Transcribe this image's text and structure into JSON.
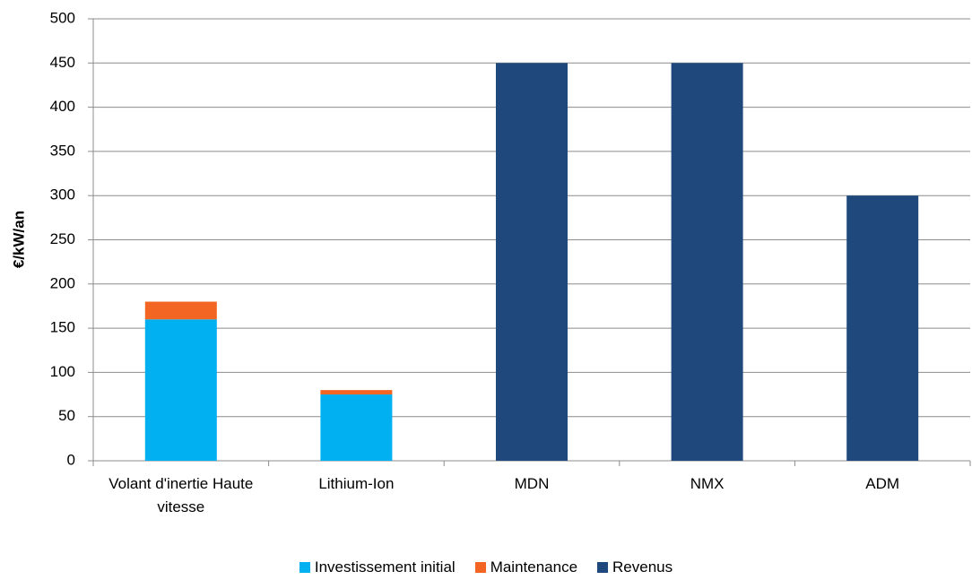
{
  "chart_data": {
    "type": "bar",
    "stacked": true,
    "ylabel": "€/kW/an",
    "categories": [
      "Volant d'inertie Haute vitesse",
      "Lithium-Ion",
      "MDN",
      "NMX",
      "ADM"
    ],
    "series": [
      {
        "name": "Investissement initial",
        "color": "#00b0f0",
        "values": [
          160,
          75,
          null,
          null,
          null
        ]
      },
      {
        "name": "Maintenance",
        "color": "#f26522",
        "values": [
          20,
          5,
          null,
          null,
          null
        ]
      },
      {
        "name": "Revenus",
        "color": "#1f497d",
        "values": [
          null,
          null,
          450,
          450,
          300
        ]
      }
    ],
    "ylim": [
      0,
      500
    ],
    "yticks": [
      0,
      50,
      100,
      150,
      200,
      250,
      300,
      350,
      400,
      450,
      500
    ],
    "grid": true,
    "legend": "bottom"
  }
}
